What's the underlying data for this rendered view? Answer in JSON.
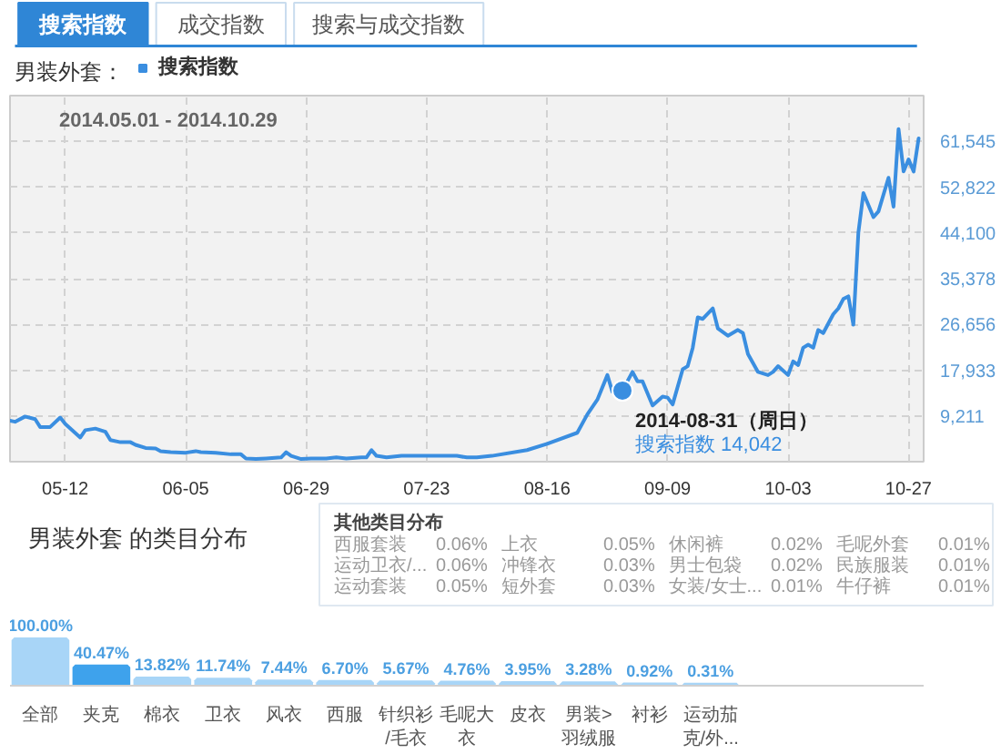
{
  "chart_data": [
    {
      "type": "other",
      "annotations": [
        "搜索指数",
        "成交指数",
        "搜索与成交指数"
      ]
    },
    {
      "type": "line",
      "title": "男装外套：",
      "legend": "top left",
      "grid": true,
      "xlim": [
        "2014-05-01",
        "2014-10-30"
      ],
      "ylim": [
        489,
        70267
      ],
      "xticks": [
        {
          "value": "2014-05-12",
          "label": "05-12"
        },
        {
          "value": "2014-06-05",
          "label": "06-05"
        },
        {
          "value": "2014-06-29",
          "label": "06-29"
        },
        {
          "value": "2014-07-23",
          "label": "07-23"
        },
        {
          "value": "2014-08-16",
          "label": "08-16"
        },
        {
          "value": "2014-09-09",
          "label": "09-09"
        },
        {
          "value": "2014-10-03",
          "label": "10-03"
        },
        {
          "value": "2014-10-27",
          "label": "10-27"
        }
      ],
      "yticks": [
        {
          "value": 9211,
          "label": "9,211"
        },
        {
          "value": 17933,
          "label": "17,933"
        },
        {
          "value": 26656,
          "label": "26,656"
        },
        {
          "value": 35378,
          "label": "35,378"
        },
        {
          "value": 44100,
          "label": "44,100"
        },
        {
          "value": 52822,
          "label": "52,822"
        },
        {
          "value": 61545,
          "label": "61,545"
        }
      ],
      "annotations": [
        "2014.05.01 - 2014.10.29",
        {
          "text": "2014-08-31（周日）",
          "x": "2014-08-31",
          "y": 14042
        },
        {
          "text": "搜索指数 14,042",
          "x": "2014-08-31",
          "y": 14042
        }
      ],
      "x": [
        "2014-05-01",
        "2014-05-02",
        "2014-05-04",
        "2014-05-06",
        "2014-05-07",
        "2014-05-09",
        "2014-05-11",
        "2014-05-12",
        "2014-05-15",
        "2014-05-16",
        "2014-05-18",
        "2014-05-20",
        "2014-05-21",
        "2014-05-23",
        "2014-05-25",
        "2014-05-26",
        "2014-05-28",
        "2014-05-30",
        "2014-05-31",
        "2014-06-02",
        "2014-06-05",
        "2014-06-07",
        "2014-06-08",
        "2014-06-11",
        "2014-06-14",
        "2014-06-16",
        "2014-06-17",
        "2014-06-19",
        "2014-06-21",
        "2014-06-24",
        "2014-06-25",
        "2014-06-26",
        "2014-06-28",
        "2014-06-30",
        "2014-07-03",
        "2014-07-05",
        "2014-07-07",
        "2014-07-10",
        "2014-07-11",
        "2014-07-12",
        "2014-07-13",
        "2014-07-15",
        "2014-07-18",
        "2014-07-22",
        "2014-07-25",
        "2014-07-27",
        "2014-07-29",
        "2014-07-31",
        "2014-08-02",
        "2014-08-05",
        "2014-08-12",
        "2014-08-16",
        "2014-08-22",
        "2014-08-24",
        "2014-08-26",
        "2014-08-28",
        "2014-08-29",
        "2014-08-31",
        "2014-09-02",
        "2014-09-03",
        "2014-09-04",
        "2014-09-06",
        "2014-09-08",
        "2014-09-09",
        "2014-09-10",
        "2014-09-12",
        "2014-09-13",
        "2014-09-14",
        "2014-09-15",
        "2014-09-16",
        "2014-09-18",
        "2014-09-19",
        "2014-09-21",
        "2014-09-23",
        "2014-09-24",
        "2014-09-25",
        "2014-09-27",
        "2014-09-29",
        "2014-09-30",
        "2014-10-01",
        "2014-10-03",
        "2014-10-04",
        "2014-10-05",
        "2014-10-06",
        "2014-10-07",
        "2014-10-08",
        "2014-10-09",
        "2014-10-10",
        "2014-10-12",
        "2014-10-13",
        "2014-10-14",
        "2014-10-15",
        "2014-10-16",
        "2014-10-17",
        "2014-10-18",
        "2014-10-20",
        "2014-10-21",
        "2014-10-23",
        "2014-10-24",
        "2014-10-25",
        "2014-10-26",
        "2014-10-27",
        "2014-10-28",
        "2014-10-29"
      ],
      "series": [
        {
          "name": "搜索指数",
          "color": "#3a8ee0",
          "values": [
            8300,
            8100,
            9100,
            8600,
            7100,
            7100,
            8900,
            7700,
            5100,
            6500,
            6800,
            6200,
            4600,
            4200,
            4200,
            3700,
            3100,
            3000,
            2500,
            2300,
            2200,
            2500,
            2300,
            2200,
            1900,
            1900,
            1100,
            1000,
            1100,
            1300,
            2300,
            1600,
            1000,
            1100,
            1100,
            1300,
            1100,
            1300,
            1300,
            2700,
            1600,
            1300,
            1600,
            1600,
            1600,
            1600,
            1600,
            1300,
            1300,
            1600,
            2700,
            3900,
            6000,
            9500,
            12300,
            17000,
            13800,
            14042,
            17600,
            15800,
            15800,
            11200,
            12900,
            12700,
            11400,
            18100,
            18700,
            22200,
            28000,
            27700,
            29700,
            25900,
            24500,
            25600,
            25000,
            21000,
            17600,
            17000,
            17600,
            18700,
            17000,
            19600,
            18900,
            22200,
            22800,
            22200,
            25600,
            25000,
            28600,
            29700,
            31500,
            32000,
            26600,
            44200,
            51700,
            47100,
            48200,
            54600,
            49100,
            63900,
            55800,
            58100,
            55800,
            62100
          ]
        }
      ]
    },
    {
      "type": "bar",
      "title": "男装外套 的类目分布",
      "tick_labels": "x",
      "categories": [
        "全部",
        "夹克",
        "棉衣",
        "卫衣",
        "风衣",
        "西服",
        "针织衫/毛衣",
        "毛呢大衣",
        "皮衣",
        "男装>羽绒服",
        "衬衫",
        "运动茄克/外...",
        null,
        null,
        null
      ],
      "values": [
        100,
        40.47,
        13.82,
        11.74,
        7.44,
        6.7,
        5.67,
        4.76,
        3.95,
        3.28,
        0.92,
        0.31,
        null,
        null,
        null
      ],
      "colors": [
        "#a8d5f7",
        "#3ea2ec",
        "#a8d5f7",
        "#a8d5f7",
        "#a8d5f7",
        "#a8d5f7",
        "#a8d5f7",
        "#a8d5f7",
        "#a8d5f7",
        "#a8d5f7",
        "#a8d5f7",
        "#a8d5f7",
        "#a8d5f7",
        "#a8d5f7",
        "#a8d5f7"
      ],
      "value_labels": [
        "100.00%",
        "40.47%",
        "13.82%",
        "11.74%",
        "7.44%",
        "6.70%",
        "5.67%",
        "4.76%",
        "3.95%",
        "3.28%",
        "0.92%",
        "0.31%",
        null,
        null,
        null
      ]
    },
    {
      "type": "other",
      "title": "其他类目分布",
      "annotations": [
        "西服套装",
        "0.06%",
        "运动卫衣/...",
        "0.06%",
        "运动套装",
        "0.05%",
        "上衣",
        "0.05%",
        "冲锋衣",
        "0.03%",
        "短外套",
        "0.03%",
        "休闲裤",
        "0.02%",
        "男士包袋",
        "0.02%",
        "女装/女士...",
        "0.01%",
        "毛呢外套",
        "0.01%",
        "民族服装",
        "0.01%",
        "牛仔裤",
        "0.01%"
      ]
    }
  ]
}
